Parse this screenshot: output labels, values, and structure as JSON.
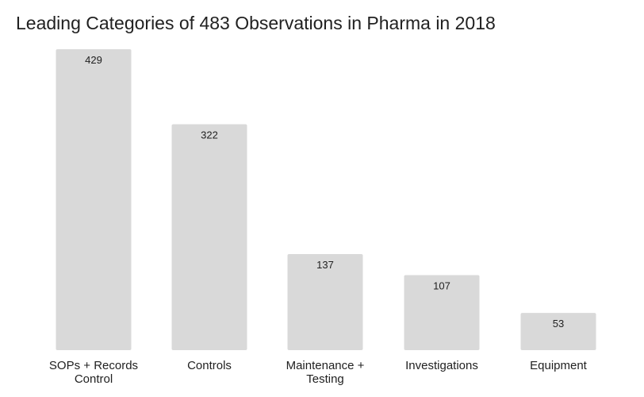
{
  "chart_data": {
    "type": "bar",
    "title": "Leading Categories of 483 Observations in Pharma in 2018",
    "categories": [
      [
        "SOPs + Records",
        "Control"
      ],
      [
        "Controls"
      ],
      [
        "Maintenance +",
        "Testing"
      ],
      [
        "Investigations"
      ],
      [
        "Equipment"
      ]
    ],
    "values": [
      429,
      322,
      137,
      107,
      53
    ],
    "value_labels": [
      "429",
      "322",
      "137",
      "107",
      "53"
    ],
    "xlabel": "",
    "ylabel": "",
    "ylim": [
      0,
      429
    ],
    "grid": false,
    "legend": "none",
    "bar_color": "#d9d9d9",
    "text_color": "#212121"
  }
}
